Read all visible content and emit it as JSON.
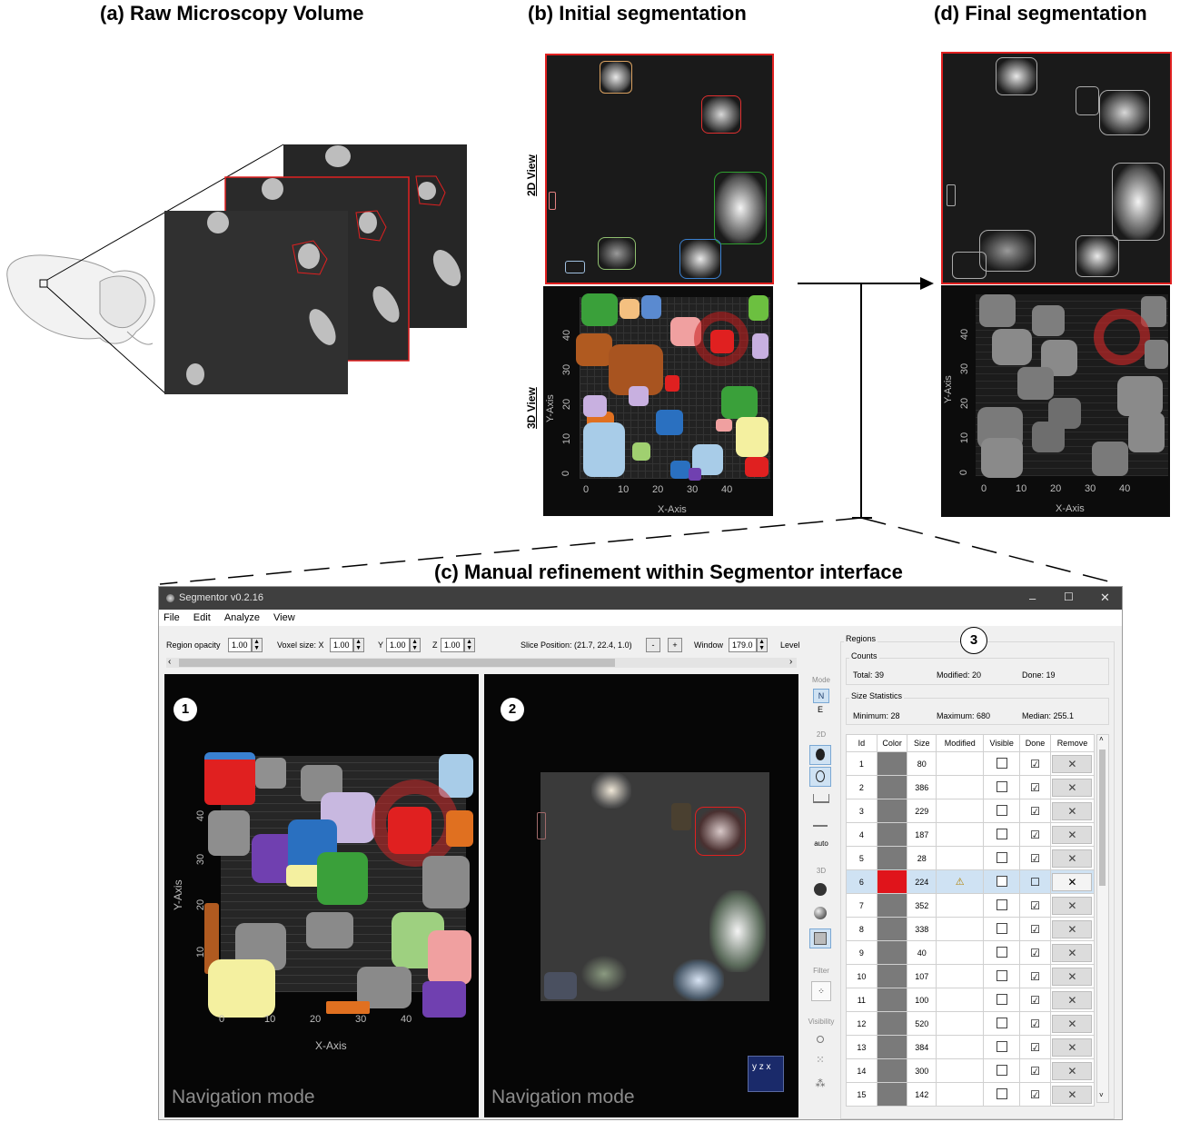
{
  "panels": {
    "a_title": "(a) Raw Microscopy Volume",
    "b_title": "(b) Initial segmentation",
    "d_title": "(d) Final segmentation",
    "c_title": "(c) Manual refinement within Segmentor  interface",
    "view2d_label": "2D View",
    "view3d_label": "3D View",
    "x_axis_label": "X-Axis",
    "y_axis_label": "Y-Axis",
    "x_ticks": [
      "0",
      "10",
      "20",
      "30",
      "40"
    ],
    "y_ticks": [
      "0",
      "10",
      "20",
      "30",
      "40"
    ]
  },
  "app": {
    "title": "Segmentor v0.2.16",
    "window_controls": [
      "–",
      "☐",
      "✕"
    ],
    "menu": [
      "File",
      "Edit",
      "Analyze",
      "View"
    ],
    "toolbar": {
      "region_opacity_label": "Region opacity",
      "region_opacity_value": "1.00",
      "voxel_size_label": "Voxel size: X",
      "voxel_x": "1.00",
      "voxel_y_label": "Y",
      "voxel_y": "1.00",
      "voxel_z_label": "Z",
      "voxel_z": "1.00",
      "slice_position": "Slice Position: (21.7, 22.4, 1.0)",
      "minus": "-",
      "plus": "+",
      "window_label": "Window",
      "window_value": "179.0",
      "level_label": "Level"
    },
    "view1": {
      "number": "1",
      "mode": "Navigation mode",
      "x_axis": "X-Axis",
      "y_axis": "Y-Axis",
      "x_ticks": [
        "0",
        "10",
        "20",
        "30",
        "40"
      ],
      "y_ticks": [
        "10",
        "20",
        "30",
        "40"
      ]
    },
    "view2": {
      "number": "2",
      "mode": "Navigation mode",
      "axes_icon": "y z x"
    },
    "sidebar": {
      "mode_label": "Mode",
      "mode_n": "N",
      "mode_e": "E",
      "label_2d": "2D",
      "auto": "auto",
      "label_3d": "3D",
      "filter": "Filter",
      "visibility": "Visibility"
    },
    "regions": {
      "group_label": "Regions",
      "number": "3",
      "counts_label": "Counts",
      "total": "Total: 39",
      "modified": "Modified: 20",
      "done": "Done: 19",
      "size_stats_label": "Size Statistics",
      "minimum": "Minimum: 28",
      "maximum": "Maximum: 680",
      "median": "Median: 255.1",
      "columns": [
        "Id",
        "Color",
        "Size",
        "Modified",
        "Visible",
        "Done",
        "Remove"
      ],
      "rows": [
        {
          "id": "1",
          "size": "80",
          "color": "#7a7a7a",
          "modified": "",
          "done": "☑"
        },
        {
          "id": "2",
          "size": "386",
          "color": "#7a7a7a",
          "modified": "",
          "done": "☑"
        },
        {
          "id": "3",
          "size": "229",
          "color": "#7a7a7a",
          "modified": "",
          "done": "☑"
        },
        {
          "id": "4",
          "size": "187",
          "color": "#7a7a7a",
          "modified": "",
          "done": "☑"
        },
        {
          "id": "5",
          "size": "28",
          "color": "#7a7a7a",
          "modified": "",
          "done": "☑"
        },
        {
          "id": "6",
          "size": "224",
          "color": "#e0141b",
          "modified": "⚠",
          "done": "☐"
        },
        {
          "id": "7",
          "size": "352",
          "color": "#7a7a7a",
          "modified": "",
          "done": "☑"
        },
        {
          "id": "8",
          "size": "338",
          "color": "#7a7a7a",
          "modified": "",
          "done": "☑"
        },
        {
          "id": "9",
          "size": "40",
          "color": "#7a7a7a",
          "modified": "",
          "done": "☑"
        },
        {
          "id": "10",
          "size": "107",
          "color": "#7a7a7a",
          "modified": "",
          "done": "☑"
        },
        {
          "id": "11",
          "size": "100",
          "color": "#7a7a7a",
          "modified": "",
          "done": "☑"
        },
        {
          "id": "12",
          "size": "520",
          "color": "#7a7a7a",
          "modified": "",
          "done": "☑"
        },
        {
          "id": "13",
          "size": "384",
          "color": "#7a7a7a",
          "modified": "",
          "done": "☑"
        },
        {
          "id": "14",
          "size": "300",
          "color": "#7a7a7a",
          "modified": "",
          "done": "☑"
        },
        {
          "id": "15",
          "size": "142",
          "color": "#7a7a7a",
          "modified": "",
          "done": "☑"
        }
      ]
    }
  }
}
